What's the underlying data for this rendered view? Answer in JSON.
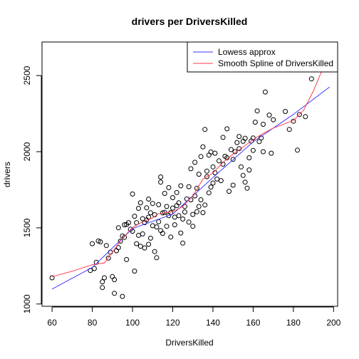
{
  "chart_data": {
    "type": "scatter",
    "title": "drivers per DriversKilled",
    "xlabel": "DriversKilled",
    "ylabel": "drivers",
    "xlim": [
      55,
      202
    ],
    "ylim": [
      985,
      2720
    ],
    "xticks": [
      60,
      80,
      100,
      120,
      140,
      160,
      180,
      200
    ],
    "yticks": [
      1000,
      1500,
      2000,
      2500
    ],
    "grid": false,
    "legend_position": "top-right",
    "colors": {
      "lowess": "#3b3bff",
      "spline": "#ff3b4f",
      "points": "#000000",
      "axis": "#000000"
    },
    "legend": [
      {
        "label": "Lowess approx",
        "color": "#3b3bff"
      },
      {
        "label": "Smooth Spline of DriversKilled",
        "color": "#ff3b4f"
      }
    ],
    "points": [
      [
        60,
        1172
      ],
      [
        79,
        1220
      ],
      [
        80,
        1396
      ],
      [
        81,
        1233
      ],
      [
        82,
        1274
      ],
      [
        83,
        1414
      ],
      [
        84,
        1408
      ],
      [
        85,
        1146
      ],
      [
        85,
        1108
      ],
      [
        86,
        1172
      ],
      [
        87,
        1384
      ],
      [
        88,
        1301
      ],
      [
        89,
        1340
      ],
      [
        90,
        1180
      ],
      [
        91,
        1160
      ],
      [
        91,
        1070
      ],
      [
        92,
        1350
      ],
      [
        93,
        1501
      ],
      [
        93,
        1370
      ],
      [
        94,
        1413
      ],
      [
        95,
        1447
      ],
      [
        95,
        1050
      ],
      [
        96,
        1520
      ],
      [
        96,
        1437
      ],
      [
        97,
        1522
      ],
      [
        97,
        1292
      ],
      [
        98,
        1534
      ],
      [
        99,
        1491
      ],
      [
        100,
        1722
      ],
      [
        100,
        1478
      ],
      [
        101,
        1576
      ],
      [
        101,
        1216
      ],
      [
        102,
        1396
      ],
      [
        102,
        1534
      ],
      [
        103,
        1628
      ],
      [
        103,
        1451
      ],
      [
        104,
        1379
      ],
      [
        104,
        1665
      ],
      [
        105,
        1560
      ],
      [
        105,
        1460
      ],
      [
        106,
        1534
      ],
      [
        106,
        1368
      ],
      [
        107,
        1552
      ],
      [
        107,
        1632
      ],
      [
        108,
        1392
      ],
      [
        108,
        1570
      ],
      [
        108,
        1689
      ],
      [
        109,
        1432
      ],
      [
        109,
        1599
      ],
      [
        110,
        1514
      ],
      [
        110,
        1660
      ],
      [
        111,
        1344
      ],
      [
        111,
        1586
      ],
      [
        112,
        1506
      ],
      [
        112,
        1304
      ],
      [
        113,
        1540
      ],
      [
        113,
        1652
      ],
      [
        114,
        1482
      ],
      [
        114,
        1834
      ],
      [
        114,
        1800
      ],
      [
        115,
        1598
      ],
      [
        115,
        1464
      ],
      [
        116,
        1726
      ],
      [
        116,
        1602
      ],
      [
        117,
        1640
      ],
      [
        117,
        1510
      ],
      [
        118,
        1580
      ],
      [
        118,
        1764
      ],
      [
        119,
        1600
      ],
      [
        119,
        1440
      ],
      [
        120,
        1630
      ],
      [
        120,
        1698
      ],
      [
        121,
        1520
      ],
      [
        121,
        1570
      ],
      [
        122,
        1732
      ],
      [
        122,
        1646
      ],
      [
        123,
        1580
      ],
      [
        123,
        1664
      ],
      [
        124,
        1776
      ],
      [
        124,
        1466
      ],
      [
        125,
        1558
      ],
      [
        125,
        1400
      ],
      [
        126,
        1604
      ],
      [
        126,
        1640
      ],
      [
        127,
        1690
      ],
      [
        128,
        1770
      ],
      [
        128,
        1538
      ],
      [
        129,
        1888
      ],
      [
        129,
        1684
      ],
      [
        130,
        1510
      ],
      [
        130,
        1588
      ],
      [
        131,
        1930
      ],
      [
        131,
        1710
      ],
      [
        132,
        1606
      ],
      [
        132,
        1760
      ],
      [
        133,
        1640
      ],
      [
        133,
        1852
      ],
      [
        134,
        1968
      ],
      [
        134,
        1684
      ],
      [
        135,
        2032
      ],
      [
        135,
        1600
      ],
      [
        136,
        2146
      ],
      [
        136,
        1650
      ],
      [
        137,
        1836
      ],
      [
        137,
        1872
      ],
      [
        138,
        1978
      ],
      [
        138,
        1730
      ],
      [
        139,
        1998
      ],
      [
        139,
        1768
      ],
      [
        140,
        1900
      ],
      [
        140,
        1794
      ],
      [
        141,
        1990
      ],
      [
        141,
        1862
      ],
      [
        142,
        1820
      ],
      [
        143,
        1940
      ],
      [
        144,
        1810
      ],
      [
        145,
        2094
      ],
      [
        145,
        1918
      ],
      [
        146,
        1970
      ],
      [
        147,
        2150
      ],
      [
        147,
        1960
      ],
      [
        148,
        1740
      ],
      [
        149,
        2014
      ],
      [
        150,
        1780
      ],
      [
        150,
        1950
      ],
      [
        151,
        2000
      ],
      [
        152,
        2060
      ],
      [
        153,
        2020
      ],
      [
        153,
        2100
      ],
      [
        154,
        1900
      ],
      [
        155,
        2068
      ],
      [
        155,
        1844
      ],
      [
        156,
        2088
      ],
      [
        156,
        1800
      ],
      [
        157,
        1760
      ],
      [
        158,
        1960
      ],
      [
        158,
        1880
      ],
      [
        159,
        2070
      ],
      [
        160,
        2090
      ],
      [
        160,
        2008
      ],
      [
        161,
        2194
      ],
      [
        162,
        2268
      ],
      [
        163,
        2066
      ],
      [
        164,
        2090
      ],
      [
        165,
        2180
      ],
      [
        165,
        2000
      ],
      [
        166,
        2392
      ],
      [
        168,
        2240
      ],
      [
        169,
        1990
      ],
      [
        170,
        2210
      ],
      [
        176,
        2264
      ],
      [
        178,
        2146
      ],
      [
        180,
        2200
      ],
      [
        182,
        2010
      ],
      [
        183,
        2244
      ],
      [
        186,
        2230
      ],
      [
        189,
        2478
      ]
    ],
    "lowess": [
      [
        60,
        1098
      ],
      [
        80,
        1240
      ],
      [
        100,
        1495
      ],
      [
        120,
        1590
      ],
      [
        140,
        1830
      ],
      [
        160,
        2065
      ],
      [
        180,
        2245
      ],
      [
        198,
        2425
      ]
    ],
    "spline": [
      [
        60,
        1180
      ],
      [
        70,
        1215
      ],
      [
        80,
        1258
      ],
      [
        86,
        1270
      ],
      [
        90,
        1340
      ],
      [
        95,
        1432
      ],
      [
        100,
        1502
      ],
      [
        105,
        1540
      ],
      [
        110,
        1565
      ],
      [
        113,
        1593
      ],
      [
        117,
        1600
      ],
      [
        120,
        1605
      ],
      [
        125,
        1640
      ],
      [
        130,
        1710
      ],
      [
        135,
        1820
      ],
      [
        140,
        1860
      ],
      [
        145,
        1930
      ],
      [
        150,
        1985
      ],
      [
        155,
        2030
      ],
      [
        160,
        2080
      ],
      [
        165,
        2120
      ],
      [
        170,
        2155
      ],
      [
        180,
        2205
      ],
      [
        185,
        2270
      ],
      [
        190,
        2400
      ],
      [
        196,
        2590
      ],
      [
        200,
        2690
      ]
    ]
  }
}
